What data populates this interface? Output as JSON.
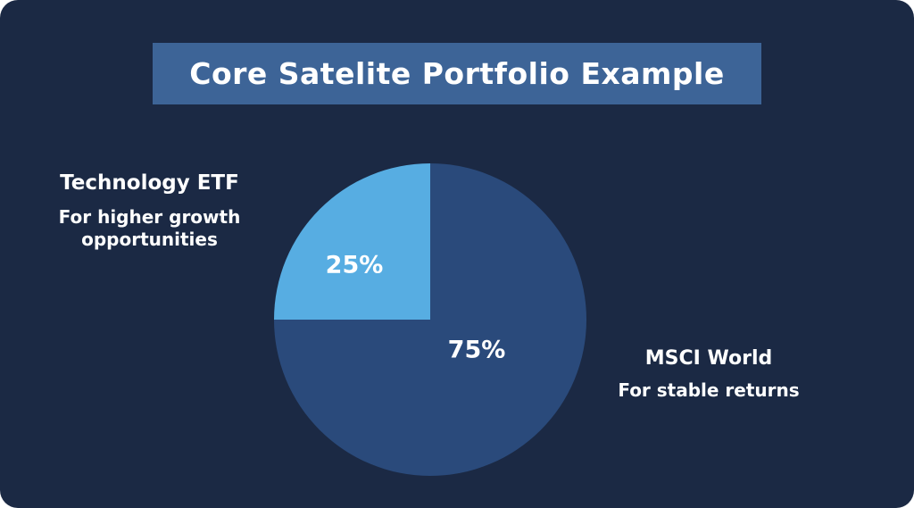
{
  "page": {
    "background_color": "#ffffff",
    "card_color": "#1b2944"
  },
  "header": {
    "title": "Core Satelite Portfolio Example",
    "banner_color": "#3d6497",
    "text_color": "#ffffff"
  },
  "labels": {
    "left": {
      "heading": "Technology ETF",
      "subtitle": "For higher growth opportunities"
    },
    "right": {
      "heading": "MSCI World",
      "subtitle": "For stable returns"
    }
  },
  "chart_data": {
    "type": "pie",
    "title": "Core Satelite Portfolio Example",
    "slices": [
      {
        "label": "MSCI World",
        "description": "For stable returns",
        "value": 75,
        "display": "75%",
        "color": "#2a4a7b"
      },
      {
        "label": "Technology ETF",
        "description": "For higher growth opportunities",
        "value": 25,
        "display": "25%",
        "color": "#57ade2"
      }
    ],
    "start_angle_deg": 0,
    "direction": "clockwise",
    "legend_position": "none",
    "labels_inside": true,
    "label_color": "#ffffff"
  }
}
